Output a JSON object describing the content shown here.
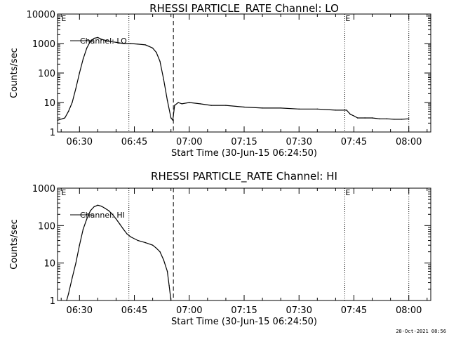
{
  "footer": {
    "timestamp": "28-Oct-2021 08:56"
  },
  "chart_data": [
    {
      "type": "line",
      "title": "RHESSI PARTICLE_RATE Channel: LO",
      "xlabel": "Start Time (30-Jun-15 06:24:50)",
      "ylabel": "Counts/sec",
      "yscale": "log",
      "ylim": [
        1,
        10000
      ],
      "xlim": [
        "06:24",
        "08:06"
      ],
      "yticks": [
        "1",
        "10",
        "100",
        "1000",
        "10000"
      ],
      "xticks": [
        "06:30",
        "06:45",
        "07:00",
        "07:15",
        "07:30",
        "07:45",
        "08:00"
      ],
      "series": [
        {
          "name": "Channel: LO",
          "x": [
            "06:24",
            "06:26",
            "06:27",
            "06:28",
            "06:29",
            "06:30",
            "06:31",
            "06:32",
            "06:33",
            "06:34",
            "06:35",
            "06:36",
            "06:38",
            "06:40",
            "06:42",
            "06:44",
            "06:46",
            "06:48",
            "06:49",
            "06:50",
            "06:51",
            "06:52",
            "06:53",
            "06:54",
            "06:55",
            "06:55:30",
            "06:56",
            "06:57",
            "06:58",
            "07:00",
            "07:03",
            "07:06",
            "07:10",
            "07:15",
            "07:20",
            "07:25",
            "07:30",
            "07:35",
            "07:40",
            "07:43",
            "07:44",
            "07:45",
            "07:46",
            "07:48",
            "07:50",
            "07:52",
            "07:54",
            "07:56",
            "07:58",
            "08:00"
          ],
          "values": [
            2.5,
            3,
            5,
            10,
            30,
            100,
            300,
            700,
            1200,
            1500,
            1600,
            1400,
            1200,
            1100,
            1000,
            1000,
            950,
            900,
            800,
            700,
            500,
            250,
            60,
            12,
            3,
            2.5,
            8,
            10,
            9,
            10,
            9,
            8,
            8,
            7,
            6.5,
            6.5,
            6,
            6,
            5.5,
            5.5,
            4,
            3.5,
            3,
            3,
            3,
            2.8,
            2.8,
            2.7,
            2.7,
            2.8
          ]
        }
      ],
      "dashed_line_at": "06:55:40",
      "dotted_lines_at": [
        "06:43:30",
        "07:42:30",
        "08:00:00"
      ],
      "annotations": [
        {
          "text": "E",
          "at": "06:24:50"
        },
        {
          "text": "E",
          "at": "07:42:30"
        }
      ]
    },
    {
      "type": "line",
      "title": "RHESSI PARTICLE_RATE Channel: HI",
      "xlabel": "Start Time (30-Jun-15 06:24:50)",
      "ylabel": "Counts/sec",
      "yscale": "log",
      "ylim": [
        1,
        1000
      ],
      "xlim": [
        "06:24",
        "08:06"
      ],
      "yticks": [
        "1",
        "10",
        "100",
        "1000"
      ],
      "xticks": [
        "06:30",
        "06:45",
        "07:00",
        "07:15",
        "07:30",
        "07:45",
        "08:00"
      ],
      "series": [
        {
          "name": "Channel: HI",
          "x": [
            "06:26:30",
            "06:27",
            "06:28",
            "06:29",
            "06:30",
            "06:31",
            "06:32",
            "06:33",
            "06:34",
            "06:35",
            "06:36",
            "06:37",
            "06:38",
            "06:39",
            "06:40",
            "06:41",
            "06:42",
            "06:43",
            "06:44",
            "06:46",
            "06:48",
            "06:50",
            "06:51",
            "06:52",
            "06:53",
            "06:54",
            "06:54:30",
            "06:55"
          ],
          "values": [
            1,
            1.5,
            4,
            10,
            30,
            80,
            150,
            250,
            320,
            350,
            330,
            290,
            250,
            200,
            150,
            110,
            80,
            60,
            50,
            40,
            35,
            30,
            25,
            20,
            12,
            6,
            2.5,
            1
          ]
        }
      ],
      "dashed_line_at": "06:55:40",
      "dotted_lines_at": [
        "06:43:30",
        "07:42:30",
        "08:00:00"
      ],
      "annotations": [
        {
          "text": "E",
          "at": "06:24:50"
        },
        {
          "text": "E",
          "at": "07:42:30"
        }
      ]
    }
  ]
}
